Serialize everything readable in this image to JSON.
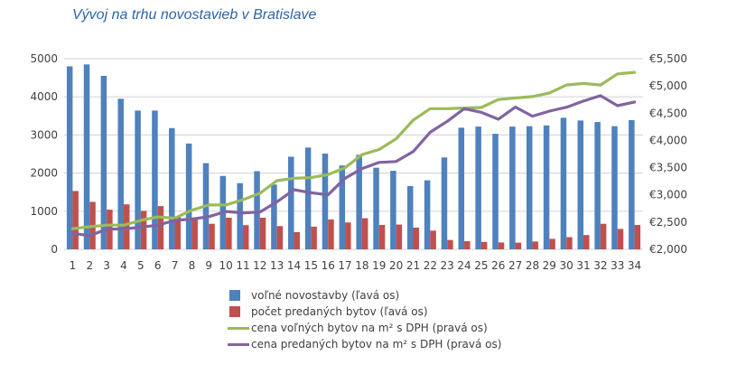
{
  "chart_data": {
    "type": "bar+line",
    "title": "Vývoj na trhu novostavieb v Bratislave",
    "xlabel": "",
    "ylabel_left": "",
    "ylabel_right": "",
    "categories": [
      "1",
      "2",
      "3",
      "4",
      "5",
      "6",
      "7",
      "8",
      "9",
      "10",
      "11",
      "12",
      "13",
      "14",
      "15",
      "16",
      "17",
      "18",
      "19",
      "20",
      "21",
      "22",
      "23",
      "24",
      "25",
      "26",
      "27",
      "28",
      "29",
      "30",
      "31",
      "32",
      "33",
      "34"
    ],
    "left_axis": {
      "min": 0,
      "max": 5000,
      "ticks": [
        0,
        1000,
        2000,
        3000,
        4000,
        5000
      ],
      "tick_labels": [
        "0",
        "1000",
        "2000",
        "3000",
        "4000",
        "5000"
      ]
    },
    "right_axis": {
      "min": 2000,
      "max": 5500,
      "ticks": [
        2000,
        2500,
        3000,
        3500,
        4000,
        4500,
        5000,
        5500
      ],
      "tick_labels": [
        "€2,000",
        "€2,500",
        "€3,000",
        "€3,500",
        "€4,000",
        "€4,500",
        "€5,000",
        "€5,500"
      ]
    },
    "grid": true,
    "legend_position": "bottom",
    "series": [
      {
        "name": "voľné novostavby (ľavá os)",
        "kind": "bar",
        "axis": "left",
        "color": "#4f81bd",
        "values": [
          4800,
          4850,
          4550,
          3950,
          3640,
          3640,
          3180,
          2775,
          2260,
          1925,
          1735,
          2050,
          1700,
          2430,
          2670,
          2510,
          2200,
          2480,
          2140,
          2060,
          1660,
          1810,
          2410,
          3190,
          3220,
          3030,
          3220,
          3230,
          3250,
          3450,
          3380,
          3340,
          3230,
          3390
        ]
      },
      {
        "name": "počet predaných bytov (ľavá os)",
        "kind": "bar",
        "axis": "left",
        "color": "#c0504d",
        "values": [
          1530,
          1245,
          1040,
          1180,
          1010,
          1135,
          850,
          790,
          670,
          830,
          635,
          830,
          610,
          450,
          595,
          785,
          705,
          815,
          640,
          650,
          570,
          490,
          245,
          215,
          195,
          180,
          175,
          205,
          275,
          320,
          375,
          670,
          535,
          640
        ]
      },
      {
        "name": "cena voľných bytov na m² s DPH (pravá os)",
        "kind": "line",
        "axis": "right",
        "color": "#9bbb59",
        "values": [
          2380,
          2415,
          2445,
          2445,
          2530,
          2595,
          2570,
          2720,
          2815,
          2815,
          2910,
          3030,
          3260,
          3305,
          3317,
          3372,
          3500,
          3738,
          3833,
          4028,
          4372,
          4583,
          4583,
          4595,
          4605,
          4750,
          4778,
          4805,
          4872,
          5017,
          5045,
          5017,
          5222,
          5250
        ]
      },
      {
        "name": "cena predaných bytov na m² s  DPH (pravá os)",
        "kind": "line",
        "axis": "right",
        "color": "#8064a2",
        "values": [
          2295,
          2250,
          2370,
          2375,
          2405,
          2445,
          2530,
          2555,
          2600,
          2695,
          2670,
          2683,
          2872,
          3095,
          3038,
          3000,
          3305,
          3483,
          3595,
          3612,
          3795,
          4150,
          4350,
          4583,
          4517,
          4388,
          4612,
          4445,
          4538,
          4610,
          4722,
          4822,
          4638,
          4705
        ]
      }
    ]
  }
}
